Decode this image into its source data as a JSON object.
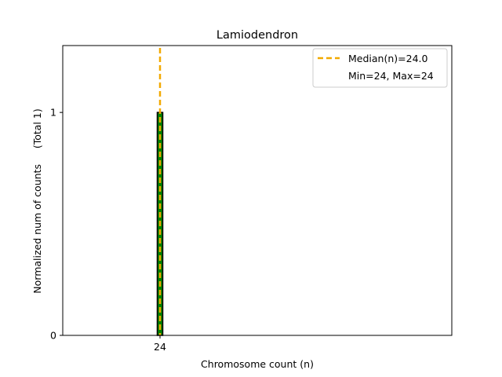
{
  "chart_data": {
    "type": "bar",
    "title": "Lamiodendron",
    "xlabel": "Chromosome count (n)",
    "ylabel": "Normalized num of counts     (Total 1)",
    "categories": [
      24
    ],
    "x_ticks": [
      24
    ],
    "y_ticks": [
      0,
      1
    ],
    "values": [
      1
    ],
    "xlim": [
      19,
      39
    ],
    "ylim": [
      0,
      1.3
    ],
    "grid": false,
    "legend_position": "top-right",
    "median": 24.0,
    "min": 24,
    "max": 24,
    "legend": [
      {
        "label": "Median(n)=24.0",
        "style": "dashed-line"
      },
      {
        "label": "Min=24, Max=24",
        "style": "none"
      }
    ],
    "colors": {
      "bar_fill": "#008000",
      "bar_edge": "#000000",
      "median_line": "#f2a900"
    }
  }
}
